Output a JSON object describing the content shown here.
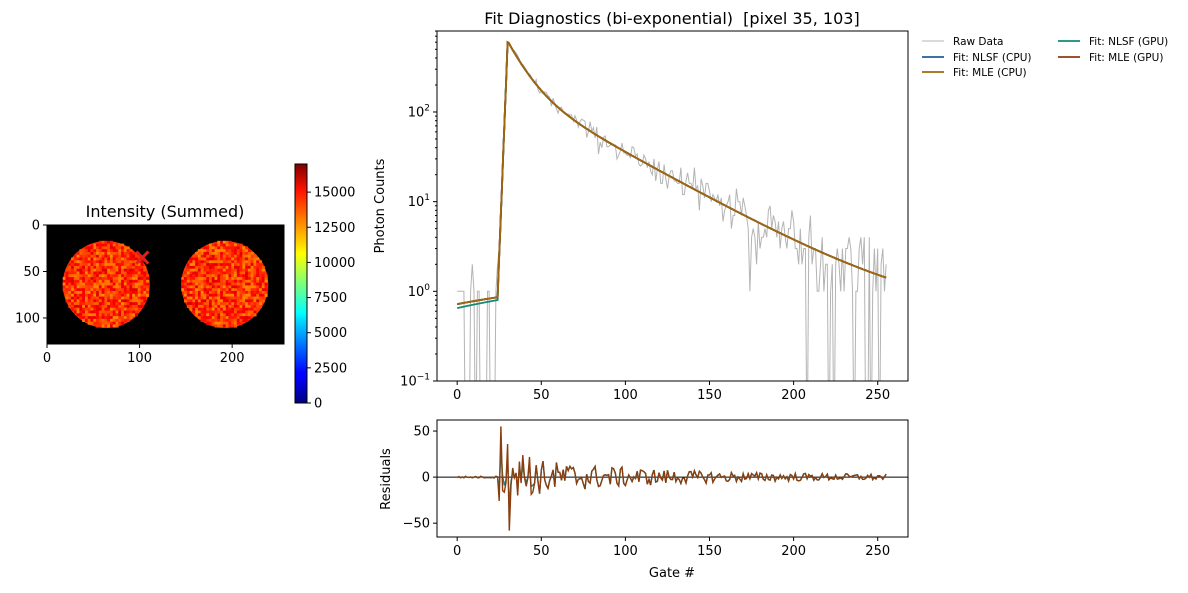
{
  "chart_data": [
    {
      "type": "heatmap",
      "title": "Intensity (Summed)",
      "xlabel": "",
      "ylabel": "",
      "x_ticks": [
        0,
        100,
        200
      ],
      "y_ticks": [
        0,
        50,
        100
      ],
      "xlim": [
        0,
        256
      ],
      "ylim": [
        128,
        0
      ],
      "colormap": "jet",
      "background_color": "#000000",
      "disks": [
        {
          "cx": 64,
          "cy": 64,
          "r": 47
        },
        {
          "cx": 192,
          "cy": 64,
          "r": 47
        }
      ],
      "disk_intensity_range": [
        12500,
        15500
      ],
      "marker": {
        "shape": "x",
        "color": "#e0201a",
        "x": 103,
        "y": 35
      },
      "colorbar": {
        "range": [
          0,
          17000
        ],
        "ticks": [
          0,
          2500,
          5000,
          7500,
          10000,
          12500,
          15000
        ],
        "tick_labels": [
          "0",
          "2500",
          "5000",
          "7500",
          "10000",
          "12500",
          "15000"
        ]
      }
    },
    {
      "type": "line",
      "title": "Fit Diagnostics (bi-exponential)  [pixel 35, 103]",
      "xlabel": "",
      "ylabel": "Photon Counts",
      "yscale": "log",
      "xlim": [
        -12,
        268
      ],
      "ylim": [
        0.1,
        800
      ],
      "x_ticks": [
        0,
        50,
        100,
        150,
        200,
        250
      ],
      "y_ticks": [
        {
          "value": 0.1,
          "base": "10",
          "exp": "−1"
        },
        {
          "value": 1,
          "base": "10",
          "exp": "0"
        },
        {
          "value": 10,
          "base": "10",
          "exp": "1"
        },
        {
          "value": 100,
          "base": "10",
          "exp": "2"
        }
      ],
      "legend": {
        "placement": "outside-top-right",
        "columns": 2,
        "items": [
          {
            "label": "Raw Data",
            "color": "#b4b4b4"
          },
          {
            "label": "Fit: NLSF (GPU)",
            "color": "#11897a"
          },
          {
            "label": "Fit: NLSF (CPU)",
            "color": "#1f5f99"
          },
          {
            "label": "Fit: MLE (GPU)",
            "color": "#8b3d10"
          },
          {
            "label": "Fit: MLE (CPU)",
            "color": "#a0660e"
          }
        ]
      },
      "model": {
        "gate_range": [
          0,
          255
        ],
        "baseline_start": 0.72,
        "baseline_end": 0.86,
        "rise_start_gate": 24,
        "peak_gate": 30,
        "peak_value": 600,
        "fast_component": {
          "amplitude": 430,
          "tau_gates": 10
        },
        "slow_component": {
          "amplitude": 185,
          "tau_gates": 42
        },
        "offset": 1.0
      },
      "series": [
        {
          "name": "Raw Data",
          "color": "#b4b4b4",
          "description_kind": "noisy"
        },
        {
          "name": "Fit: NLSF (CPU)",
          "color": "#1f5f99"
        },
        {
          "name": "Fit: NLSF (GPU)",
          "color": "#11897a",
          "baseline_start": 0.65,
          "baseline_end": 0.8
        },
        {
          "name": "Fit: MLE (CPU)",
          "color": "#a0660e"
        },
        {
          "name": "Fit: MLE (GPU)",
          "color": "#8b3d10"
        }
      ]
    },
    {
      "type": "line",
      "title": "",
      "xlabel": "Gate #",
      "ylabel": "Residuals",
      "xlim": [
        -12,
        268
      ],
      "ylim": [
        -65,
        62
      ],
      "x_ticks": [
        0,
        50,
        100,
        150,
        200,
        250
      ],
      "y_ticks": [
        -50,
        0,
        50
      ],
      "y_tick_labels": [
        "−50",
        "0",
        "50"
      ],
      "zero_line": true,
      "residual_peaks": [
        {
          "x": 26,
          "y": 55
        },
        {
          "x": 29,
          "y": -6
        },
        {
          "x": 30,
          "y": 36
        },
        {
          "x": 31,
          "y": -58
        },
        {
          "x": 33,
          "y": 10
        },
        {
          "x": 36,
          "y": -20
        },
        {
          "x": 39,
          "y": 24
        },
        {
          "x": 41,
          "y": -10
        },
        {
          "x": 43,
          "y": 22
        },
        {
          "x": 45,
          "y": -16
        }
      ],
      "series": [
        {
          "name": "Fit: NLSF (GPU)",
          "color": "#11897a"
        },
        {
          "name": "Fit: MLE (GPU)",
          "color": "#8b3d10"
        }
      ]
    }
  ]
}
